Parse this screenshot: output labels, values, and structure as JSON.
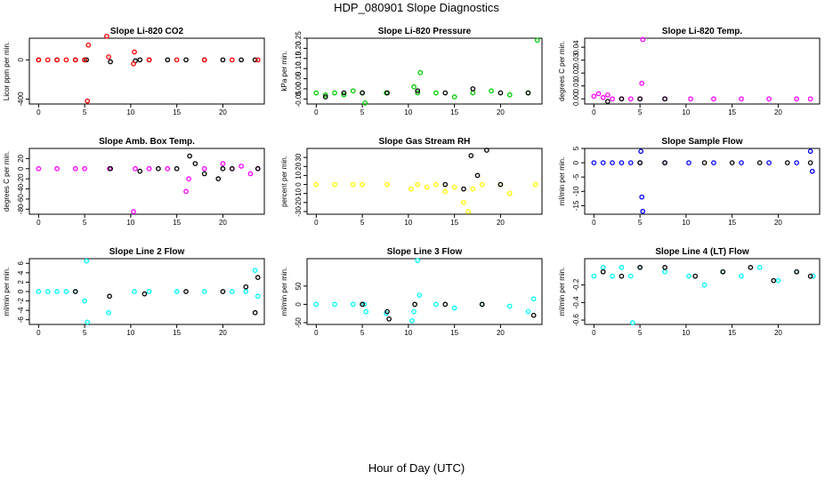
{
  "figure": {
    "title": "HDP_080901  Slope Diagnostics",
    "xlabel": "Hour of Day (UTC)"
  },
  "chart_data": [
    {
      "type": "scatter",
      "title": "Slope Li-820 CO2",
      "ylabel": "Licor ppm per min.",
      "xlim": [
        -1,
        24.5
      ],
      "ylim": [
        -450,
        220
      ],
      "xticks": [
        0,
        5,
        10,
        15,
        20
      ],
      "yticks": [
        -400,
        0
      ],
      "ytick_labels": [
        "-400",
        "0"
      ],
      "series": [
        {
          "name": "black",
          "color": "#000000",
          "x": [
            0,
            2,
            4,
            5,
            5.2,
            7.8,
            10.5,
            11,
            12,
            14,
            16,
            18,
            20,
            22,
            23.5
          ],
          "y": [
            0,
            0,
            0,
            0,
            0,
            -20,
            -10,
            0,
            0,
            0,
            0,
            0,
            0,
            0,
            0
          ]
        },
        {
          "name": "red",
          "color": "#ff0000",
          "x": [
            0,
            1,
            2,
            3,
            4,
            5,
            5.4,
            5.3,
            7.4,
            7.6,
            10.3,
            10.4,
            12,
            15,
            18,
            21,
            23.8
          ],
          "y": [
            0,
            0,
            0,
            0,
            0,
            0,
            150,
            -420,
            240,
            30,
            -40,
            80,
            0,
            0,
            0,
            0,
            0
          ]
        }
      ]
    },
    {
      "type": "scatter",
      "title": "Slope Li-820 Pressure",
      "ylabel": "kPa per min.",
      "xlim": [
        -1,
        24.5
      ],
      "ylim": [
        -0.075,
        0.25
      ],
      "xticks": [
        0,
        5,
        10,
        15,
        20
      ],
      "yticks": [
        -0.05,
        0,
        0.05,
        0.1,
        0.15,
        0.2,
        0.25
      ],
      "ytick_labels": [
        "-0.05",
        "0.00",
        "0.05",
        "0.10",
        "0.15",
        "0.20",
        "0.25"
      ],
      "series": [
        {
          "name": "green",
          "color": "#00cc00",
          "x": [
            0,
            1,
            2,
            3,
            4,
            5,
            5.3,
            7.6,
            10.6,
            11,
            11.3,
            13,
            15,
            17,
            19,
            21,
            23,
            24
          ],
          "y": [
            -0.02,
            -0.03,
            -0.02,
            -0.03,
            -0.01,
            -0.02,
            -0.07,
            -0.02,
            0.01,
            -0.02,
            0.08,
            -0.02,
            -0.04,
            -0.02,
            -0.01,
            -0.03,
            -0.02,
            0.24
          ]
        },
        {
          "name": "black",
          "color": "#000000",
          "x": [
            1,
            3,
            5,
            7.7,
            11,
            14,
            17,
            20,
            23
          ],
          "y": [
            -0.04,
            -0.02,
            -0.02,
            -0.02,
            -0.01,
            -0.02,
            0.0,
            -0.02,
            -0.02
          ]
        }
      ]
    },
    {
      "type": "scatter",
      "title": "Slope Li-820 Temp.",
      "ylabel": "degrees C per min.",
      "xlim": [
        -1,
        24.5
      ],
      "ylim": [
        -0.004,
        0.047
      ],
      "xticks": [
        0,
        5,
        10,
        15,
        20
      ],
      "yticks": [
        0,
        0.01,
        0.02,
        0.03,
        0.04
      ],
      "ytick_labels": [
        "0.00",
        "0.01",
        "0.02",
        "0.03",
        "0.04"
      ],
      "series": [
        {
          "name": "magenta",
          "color": "#ff00ff",
          "x": [
            0,
            0.5,
            1,
            1.5,
            2,
            3,
            4,
            5,
            5.2,
            5.3,
            7.7,
            10.5,
            13,
            16,
            19,
            22,
            23.5
          ],
          "y": [
            0.002,
            0.004,
            0.001,
            0.003,
            0.0,
            0.0,
            0.0,
            0.0,
            0.012,
            0.046,
            0.0,
            0.0,
            0.0,
            0.0,
            0.0,
            0.0,
            0.0
          ]
        },
        {
          "name": "black",
          "color": "#000000",
          "x": [
            1.5,
            3,
            5,
            7.7
          ],
          "y": [
            -0.002,
            0.0,
            0.0,
            0.0
          ]
        }
      ]
    },
    {
      "type": "scatter",
      "title": "Slope Amb. Box Temp.",
      "ylabel": "degrees C per min.",
      "xlim": [
        -1,
        24.5
      ],
      "ylim": [
        -90,
        40
      ],
      "xticks": [
        0,
        5,
        10,
        15,
        20
      ],
      "yticks": [
        -80,
        -60,
        -40,
        -20,
        0,
        20
      ],
      "ytick_labels": [
        "-80",
        "-60",
        "-40",
        "-20",
        "0",
        "20"
      ],
      "series": [
        {
          "name": "magenta",
          "color": "#ff00ff",
          "x": [
            0,
            2,
            4,
            5,
            7.7,
            10.3,
            10.5,
            12,
            14,
            16,
            16.3,
            18,
            20,
            21,
            22,
            23,
            23.8
          ],
          "y": [
            0,
            0,
            0,
            0,
            0,
            -85,
            0,
            0,
            0,
            -45,
            -20,
            0,
            10,
            0,
            5,
            -10,
            0
          ]
        },
        {
          "name": "black",
          "color": "#000000",
          "x": [
            7.8,
            11,
            13,
            15,
            16.4,
            17,
            18,
            19.5,
            20,
            21,
            23.8
          ],
          "y": [
            0,
            -5,
            0,
            0,
            25,
            10,
            -10,
            -20,
            0,
            0,
            0
          ]
        }
      ]
    },
    {
      "type": "scatter",
      "title": "Slope Gas Stream RH",
      "ylabel": "percent per min.",
      "xlim": [
        -1,
        24.5
      ],
      "ylim": [
        -33,
        40
      ],
      "xticks": [
        0,
        5,
        10,
        15,
        20
      ],
      "yticks": [
        -30,
        -20,
        -10,
        0,
        10,
        20,
        30
      ],
      "ytick_labels": [
        "-30",
        "-20",
        "-10",
        "0",
        "10",
        "20",
        "30"
      ],
      "series": [
        {
          "name": "yellow",
          "color": "#ffff00",
          "x": [
            0,
            2,
            4,
            5,
            7.7,
            10.3,
            11,
            12,
            13,
            14,
            15,
            16,
            16.5,
            17,
            18,
            20,
            21,
            23.8
          ],
          "y": [
            0,
            0,
            0,
            0,
            0,
            -5,
            0,
            -3,
            0,
            -8,
            -3,
            -20,
            -30,
            -5,
            0,
            0,
            -10,
            0
          ]
        },
        {
          "name": "black",
          "color": "#000000",
          "x": [
            16,
            16.8,
            17.5,
            18.5,
            14,
            20
          ],
          "y": [
            -5,
            32,
            10,
            38,
            0,
            0
          ]
        }
      ]
    },
    {
      "type": "scatter",
      "title": "Slope Sample Flow",
      "ylabel": "ml/min per min.",
      "xlim": [
        -1,
        24.5
      ],
      "ylim": [
        -18,
        5
      ],
      "xticks": [
        0,
        5,
        10,
        15,
        20
      ],
      "yticks": [
        -15,
        -10,
        -5,
        0,
        5
      ],
      "ytick_labels": [
        "-15",
        "-10",
        "-5",
        "0",
        "5"
      ],
      "series": [
        {
          "name": "blue",
          "color": "#0000ff",
          "x": [
            0,
            1,
            2,
            3,
            4,
            5,
            5.1,
            5.2,
            5.3,
            7.7,
            10.3,
            13,
            16,
            19,
            22,
            23.5,
            23.7
          ],
          "y": [
            0,
            0,
            0,
            0,
            0,
            0,
            4,
            -12,
            -17,
            0,
            0,
            0,
            0,
            0,
            0,
            4,
            -3
          ]
        },
        {
          "name": "black",
          "color": "#000000",
          "x": [
            5,
            7.7,
            12,
            15,
            18,
            21,
            23.5
          ],
          "y": [
            0,
            0,
            0,
            0,
            0,
            0,
            0
          ]
        }
      ]
    },
    {
      "type": "scatter",
      "title": "Slope Line 2 Flow",
      "ylabel": "ml/min per min.",
      "xlim": [
        -1,
        24.5
      ],
      "ylim": [
        -7,
        7
      ],
      "xticks": [
        0,
        5,
        10,
        15,
        20
      ],
      "yticks": [
        -6,
        -4,
        -2,
        0,
        2,
        4,
        6
      ],
      "ytick_labels": [
        "-6",
        "-4",
        "-2",
        "0",
        "2",
        "4",
        "6"
      ],
      "series": [
        {
          "name": "cyan",
          "color": "#00ffff",
          "x": [
            0,
            1,
            2,
            3,
            4,
            5,
            5.2,
            5.3,
            7.6,
            10.4,
            12,
            15,
            18,
            21,
            22.5,
            23.5,
            23.8
          ],
          "y": [
            0,
            0,
            0,
            0,
            0,
            -2,
            6.5,
            -6.5,
            -4.5,
            0,
            0,
            0,
            0,
            0,
            0,
            4.5,
            -1
          ]
        },
        {
          "name": "black",
          "color": "#000000",
          "x": [
            4,
            7.7,
            11.5,
            16,
            20,
            22.5,
            23.5,
            23.8
          ],
          "y": [
            0,
            -1,
            -0.5,
            0,
            0,
            1,
            -4.5,
            3
          ]
        }
      ]
    },
    {
      "type": "scatter",
      "title": "Slope Line 3 Flow",
      "ylabel": "ml/min per min.",
      "xlim": [
        -1,
        24.5
      ],
      "ylim": [
        -55,
        125
      ],
      "xticks": [
        0,
        5,
        10,
        15,
        20
      ],
      "yticks": [
        -50,
        0,
        50
      ],
      "ytick_labels": [
        "-50",
        "0",
        "50"
      ],
      "series": [
        {
          "name": "cyan",
          "color": "#00ffff",
          "x": [
            0,
            2,
            4,
            5.2,
            5.4,
            7.6,
            10.4,
            10.6,
            11,
            11.2,
            13,
            15,
            18,
            21,
            23,
            23.6
          ],
          "y": [
            0,
            0,
            0,
            0,
            -20,
            -25,
            -45,
            -20,
            120,
            25,
            0,
            -10,
            0,
            -5,
            -20,
            15
          ]
        },
        {
          "name": "black",
          "color": "#000000",
          "x": [
            5,
            7.7,
            7.9,
            10.7,
            14,
            18,
            23.6
          ],
          "y": [
            0,
            -20,
            -40,
            0,
            0,
            0,
            -30
          ]
        }
      ]
    },
    {
      "type": "scatter",
      "title": "Slope Line 4 (LT) Flow",
      "ylabel": "ml/min per min.",
      "xlim": [
        -1,
        24.5
      ],
      "ylim": [
        -0.65,
        0.1
      ],
      "xticks": [
        0,
        5,
        10,
        15,
        20
      ],
      "yticks": [
        -0.6,
        -0.4,
        -0.2
      ],
      "ytick_labels": [
        "-0.6",
        "-0.4",
        "-0.2"
      ],
      "series": [
        {
          "name": "cyan",
          "color": "#00ffff",
          "x": [
            0,
            1,
            2,
            3,
            4,
            4.2,
            5,
            7.7,
            10.3,
            12,
            14,
            16,
            18,
            20,
            22,
            23.8
          ],
          "y": [
            -0.1,
            0.0,
            -0.1,
            0.0,
            -0.1,
            -0.63,
            0.0,
            -0.05,
            -0.1,
            -0.2,
            -0.05,
            -0.1,
            0.0,
            -0.15,
            -0.05,
            -0.1
          ]
        },
        {
          "name": "black",
          "color": "#000000",
          "x": [
            1,
            3,
            5,
            7.7,
            11,
            14,
            17,
            19.5,
            22,
            23.5
          ],
          "y": [
            -0.05,
            -0.1,
            0.0,
            0.0,
            -0.1,
            -0.05,
            0.0,
            -0.15,
            -0.05,
            -0.1
          ]
        }
      ]
    }
  ]
}
